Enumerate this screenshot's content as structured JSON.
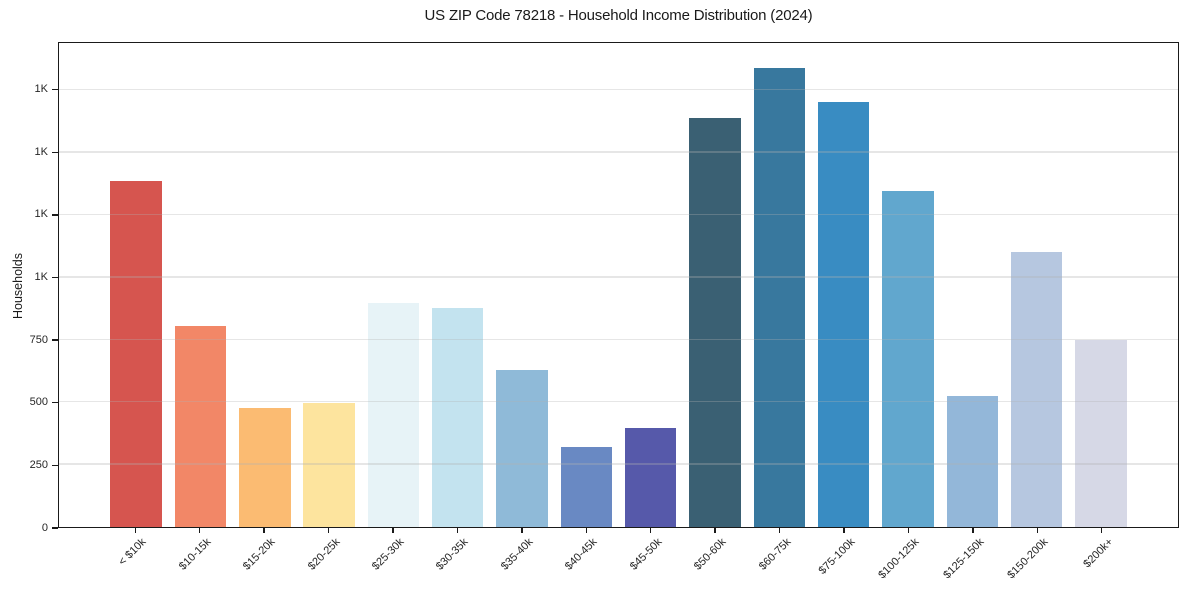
{
  "chart_data": {
    "type": "bar",
    "title": "US ZIP Code 78218 - Household Income Distribution (2024)",
    "xlabel": "",
    "ylabel": "Households",
    "categories": [
      "< $10k",
      "$10-15k",
      "$15-20k",
      "$20-25k",
      "$25-30k",
      "$30-35k",
      "$35-40k",
      "$40-45k",
      "$45-50k",
      "$50-60k",
      "$60-75k",
      "$75-100k",
      "$100-125k",
      "$125-150k",
      "$150-200k",
      "$200k+"
    ],
    "values": [
      1385,
      805,
      478,
      497,
      897,
      876,
      629,
      320,
      398,
      1640,
      1838,
      1704,
      1347,
      527,
      1102,
      749
    ],
    "bar_colors": [
      "#d6554f",
      "#f28767",
      "#fbbb72",
      "#fde49e",
      "#e7f3f7",
      "#c3e3ef",
      "#8fbad8",
      "#6989c3",
      "#5659aa",
      "#3a6073",
      "#38789e",
      "#398cc2",
      "#61a7ce",
      "#93b7d9",
      "#b6c7e0",
      "#d6d8e6"
    ],
    "ylim": [
      0,
      1940
    ],
    "yticks": [
      {
        "value": 0,
        "label": "0"
      },
      {
        "value": 250,
        "label": "250"
      },
      {
        "value": 500,
        "label": "500"
      },
      {
        "value": 750,
        "label": "750"
      },
      {
        "value": 1000,
        "label": "1K"
      },
      {
        "value": 1250,
        "label": "1K"
      },
      {
        "value": 1500,
        "label": "1K"
      },
      {
        "value": 1750,
        "label": "1K"
      }
    ],
    "grid": "horizontal",
    "legend": "none",
    "background_color": "#ffffff",
    "spine_color": "#1a1a1a",
    "bar_width_fraction": 0.8
  }
}
